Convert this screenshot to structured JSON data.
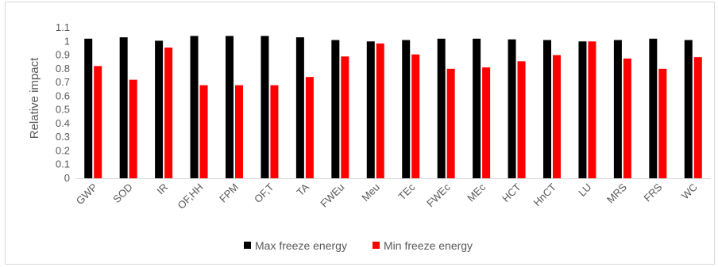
{
  "chart_data": {
    "type": "bar",
    "ylabel": "Relative impact",
    "xlabel": "",
    "ylim": [
      0,
      1.1
    ],
    "yticks": [
      "0",
      "0.1",
      "0.2",
      "0.3",
      "0.4",
      "0.5",
      "0.6",
      "0.7",
      "0.8",
      "0.9",
      "1",
      "1.1"
    ],
    "grid": false,
    "legend_position": "bottom",
    "categories": [
      "GWP",
      "SOD",
      "IR",
      "OF,HH",
      "FPM",
      "OF,T",
      "TA",
      "FWEu",
      "Meu",
      "TEc",
      "FWEc",
      "MEc",
      "HCT",
      "HnCT",
      "LU",
      "MRS",
      "FRS",
      "WC"
    ],
    "series": [
      {
        "name": "Max freeze energy",
        "color": "#000000",
        "values": [
          1.02,
          1.03,
          1.005,
          1.04,
          1.04,
          1.04,
          1.03,
          1.01,
          1.0,
          1.01,
          1.02,
          1.02,
          1.015,
          1.01,
          1.0,
          1.01,
          1.02,
          1.01
        ]
      },
      {
        "name": "Min freeze energy",
        "color": "#ff0000",
        "values": [
          0.82,
          0.72,
          0.955,
          0.68,
          0.68,
          0.68,
          0.74,
          0.89,
          0.985,
          0.905,
          0.8,
          0.81,
          0.855,
          0.9,
          1.0,
          0.875,
          0.8,
          0.885
        ]
      }
    ]
  }
}
